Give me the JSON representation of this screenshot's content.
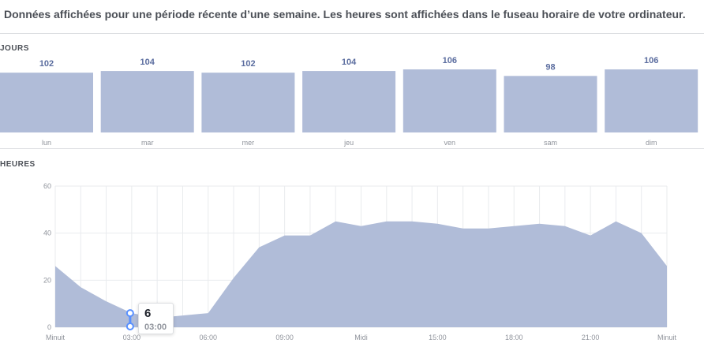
{
  "header": {
    "notice": "Données affichées pour une période récente d’une semaine. Les heures sont affichées dans le fuseau horaire de votre ordinateur."
  },
  "colors": {
    "fill": "#b0bcd8",
    "label_blue": "#5b6d9f",
    "axis_text": "#90949c",
    "grid": "#e9ebee",
    "marker": "#5890ff"
  },
  "days": {
    "title": "JOURS",
    "chart_data": {
      "type": "bar",
      "categories": [
        "lun",
        "mar",
        "mer",
        "jeu",
        "ven",
        "sam",
        "dim"
      ],
      "values": [
        102,
        104,
        102,
        104,
        106,
        98,
        106
      ],
      "ylim": [
        0,
        106
      ]
    }
  },
  "hours": {
    "title": "HEURES",
    "chart_data": {
      "type": "area",
      "x": [
        0,
        1,
        2,
        3,
        4,
        5,
        6,
        7,
        8,
        9,
        10,
        11,
        12,
        13,
        14,
        15,
        16,
        17,
        18,
        19,
        20,
        21,
        22,
        23,
        24
      ],
      "values": [
        26,
        17,
        11,
        6,
        4,
        5,
        6,
        21,
        34,
        39,
        39,
        45,
        43,
        45,
        45,
        44,
        42,
        42,
        43,
        44,
        43,
        39,
        45,
        40,
        26
      ],
      "ylim": [
        0,
        60
      ],
      "y_ticks": [
        "0",
        "20",
        "40",
        "60"
      ],
      "x_tick_labels": [
        "Minuit",
        "03:00",
        "06:00",
        "09:00",
        "Midi",
        "15:00",
        "18:00",
        "21:00",
        "Minuit"
      ],
      "x_tick_hours": [
        0,
        3,
        6,
        9,
        12,
        15,
        18,
        21,
        24
      ]
    },
    "tooltip": {
      "value": "6",
      "time": "03:00",
      "hour": 3
    }
  }
}
